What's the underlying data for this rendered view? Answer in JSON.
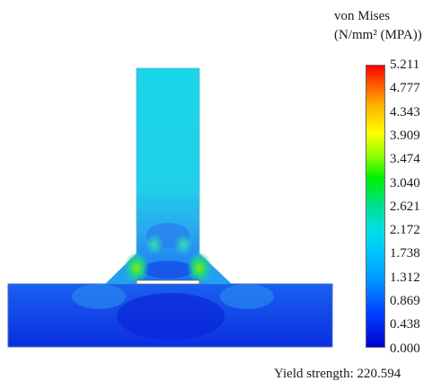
{
  "legend": {
    "title_line1": "von Mises",
    "title_line2": "(N/mm² (MPA))",
    "ticks": [
      "5.211",
      "4.777",
      "4.343",
      "3.909",
      "3.474",
      "3.040",
      "2.621",
      "2.172",
      "1.738",
      "1.312",
      "0.869",
      "0.438",
      "0.000"
    ]
  },
  "footer": {
    "yield_label": "Yield strength: 220.594"
  },
  "colors": {
    "low": "#0000d2",
    "mid": "#00e0e0",
    "high": "#ff0000"
  }
}
